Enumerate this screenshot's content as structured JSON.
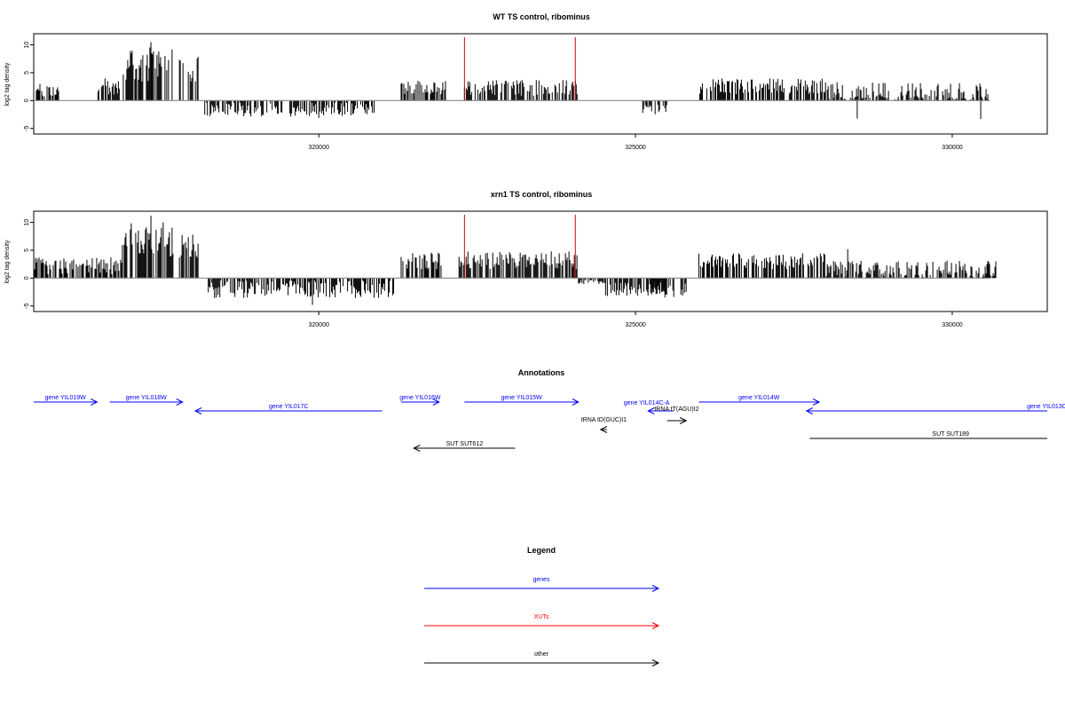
{
  "colors": {
    "gene": "#0000ff",
    "xut": "#ff0000",
    "other": "#000000",
    "bar": "#000000",
    "marker": "#cc0000",
    "baseline": "#888888",
    "frame": "#000000"
  },
  "chart_data": [
    {
      "type": "bar",
      "title": "WT TS control, ribominus",
      "ylabel": "log2 tag density",
      "xlim": [
        315500,
        331500
      ],
      "ylim": [
        -6,
        12
      ],
      "x_ticks": [
        320000,
        325000,
        330000
      ],
      "y_ticks": [
        -5,
        0,
        5,
        10
      ],
      "marker_lines_x": [
        322300,
        324050
      ],
      "grid": false,
      "segments": [
        {
          "start": 315500,
          "end": 315900,
          "mean": 1.8,
          "var": 0.8
        },
        {
          "start": 316500,
          "end": 316850,
          "mean": 2.5,
          "var": 1.0
        },
        {
          "start": 316900,
          "end": 317700,
          "mean": 6.5,
          "var": 2.0
        },
        {
          "start": 317800,
          "end": 318100,
          "mean": 5.5,
          "var": 1.5
        },
        {
          "start": 318200,
          "end": 320900,
          "mean": -1.6,
          "var": 0.8
        },
        {
          "start": 321300,
          "end": 322000,
          "mean": 2.4,
          "var": 0.8
        },
        {
          "start": 322300,
          "end": 324100,
          "mean": 2.3,
          "var": 0.9
        },
        {
          "start": 325100,
          "end": 325500,
          "mean": -1.6,
          "var": 0.6
        },
        {
          "start": 326000,
          "end": 328000,
          "mean": 2.6,
          "var": 0.9
        },
        {
          "start": 328000,
          "end": 330600,
          "mean": 1.2,
          "var": 1.3
        }
      ],
      "extremes": [
        {
          "x": 317350,
          "y": 10.5
        },
        {
          "x": 328500,
          "y": -3.2
        },
        {
          "x": 320000,
          "y": -3.1
        },
        {
          "x": 330450,
          "y": -3.3
        }
      ]
    },
    {
      "type": "bar",
      "title": "xrn1 TS control, ribominus",
      "ylabel": "log2 tag density",
      "xlim": [
        315500,
        331500
      ],
      "ylim": [
        -6,
        12
      ],
      "x_ticks": [
        320000,
        325000,
        330000
      ],
      "y_ticks": [
        -5,
        0,
        5,
        10
      ],
      "marker_lines_x": [
        322300,
        324050
      ],
      "grid": false,
      "segments": [
        {
          "start": 315500,
          "end": 316900,
          "mean": 2.2,
          "var": 1.0
        },
        {
          "start": 316900,
          "end": 317700,
          "mean": 7.0,
          "var": 2.0
        },
        {
          "start": 317800,
          "end": 318100,
          "mean": 5.5,
          "var": 1.5
        },
        {
          "start": 318200,
          "end": 321200,
          "mean": -2.0,
          "var": 1.0
        },
        {
          "start": 321300,
          "end": 322000,
          "mean": 3.0,
          "var": 1.0
        },
        {
          "start": 322200,
          "end": 324100,
          "mean": 3.2,
          "var": 1.0
        },
        {
          "start": 324100,
          "end": 324500,
          "mean": -0.6,
          "var": 0.3
        },
        {
          "start": 324500,
          "end": 325500,
          "mean": -1.8,
          "var": 0.9
        },
        {
          "start": 325100,
          "end": 325800,
          "mean": -2.2,
          "var": 0.8
        },
        {
          "start": 326000,
          "end": 328000,
          "mean": 3.0,
          "var": 0.9
        },
        {
          "start": 328000,
          "end": 330700,
          "mean": 1.6,
          "var": 1.0
        }
      ],
      "extremes": [
        {
          "x": 317350,
          "y": 11.2
        },
        {
          "x": 319900,
          "y": -4.8
        },
        {
          "x": 328350,
          "y": 5.2
        }
      ]
    }
  ],
  "annotations": {
    "title": "Annotations",
    "xlim": [
      315500,
      331500
    ],
    "features": [
      {
        "label": "gene YIL019W",
        "kind": "gene",
        "start": 315500,
        "end": 316500,
        "strand": "+",
        "row": 0
      },
      {
        "label": "gene YIL018W",
        "kind": "gene",
        "start": 316700,
        "end": 317850,
        "strand": "+",
        "row": 0
      },
      {
        "label": "gene YIL017C",
        "kind": "gene",
        "start": 318050,
        "end": 321000,
        "strand": "-",
        "row": 1
      },
      {
        "label": "gene YIL016W",
        "kind": "gene",
        "start": 321300,
        "end": 321900,
        "strand": "+",
        "row": 0
      },
      {
        "label": "gene YIL015W",
        "kind": "gene",
        "start": 322300,
        "end": 324100,
        "strand": "+",
        "row": 0
      },
      {
        "label": "gene YIL014C-A",
        "kind": "gene",
        "start": 325200,
        "end": 325600,
        "strand": "-",
        "row": 1,
        "label_dx": -16,
        "label_dy": -4
      },
      {
        "label": "tRNA tT(AGU)I2",
        "kind": "other",
        "start": 325500,
        "end": 325800,
        "strand": "+",
        "row": 2,
        "label_dy": -8
      },
      {
        "label": "gene YIL014W",
        "kind": "gene",
        "start": 326000,
        "end": 327900,
        "strand": "+",
        "row": 0
      },
      {
        "label": "gene YIL013C",
        "kind": "gene",
        "start": 327700,
        "end": 331500,
        "strand": "-",
        "row": 1,
        "label_dx": 135
      },
      {
        "label": "tRNA tD(GUC)I1",
        "kind": "other",
        "start": 324450,
        "end": 324550,
        "strand": "-",
        "row": 3,
        "label_dy": -6
      },
      {
        "label": "SUT SUT612",
        "kind": "other",
        "start": 321500,
        "end": 323100,
        "strand": "-",
        "row": 5
      },
      {
        "label": "SUT SUT189",
        "kind": "other",
        "start": 327750,
        "end": 331500,
        "strand": "none",
        "row": 4,
        "label_dx": 25
      }
    ]
  },
  "legend": {
    "title": "Legend",
    "items": [
      {
        "label": "genes",
        "color_key": "gene"
      },
      {
        "label": "XUTs",
        "color_key": "xut"
      },
      {
        "label": "other",
        "color_key": "other"
      }
    ]
  }
}
